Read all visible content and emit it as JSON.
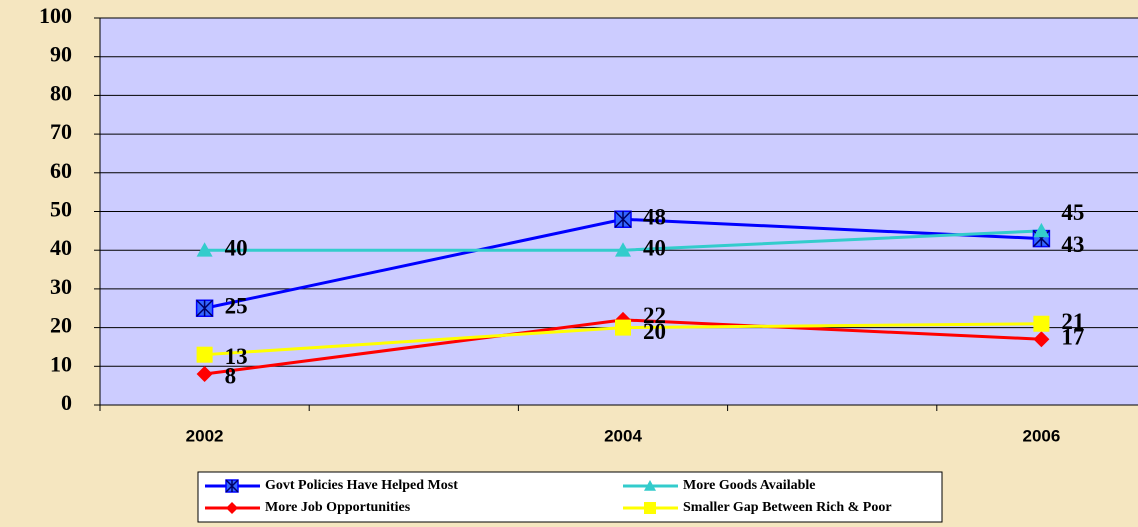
{
  "chart_data": {
    "type": "line",
    "x": [
      2002,
      2004,
      2006
    ],
    "xlim": [
      2001.5,
      2006.5
    ],
    "xticks": [
      2002,
      2004,
      2006
    ],
    "ylim": [
      0,
      100
    ],
    "yticks": [
      0,
      10,
      20,
      30,
      40,
      50,
      60,
      70,
      80,
      90,
      100
    ],
    "grid": true,
    "legend": "bottom",
    "series": [
      {
        "name": "Govt Policies Have Helped Most",
        "color": "#0000ff",
        "marker": "square-star",
        "values": [
          25,
          48,
          43
        ]
      },
      {
        "name": "More Goods Available",
        "color": "#33cccc",
        "marker": "triangle",
        "values": [
          40,
          40,
          45
        ]
      },
      {
        "name": "More Job Opportunities",
        "color": "#ff0000",
        "marker": "diamond",
        "values": [
          8,
          22,
          17
        ]
      },
      {
        "name": "Smaller Gap Between Rich & Poor",
        "color": "#ffff00",
        "marker": "square",
        "values": [
          13,
          20,
          21
        ]
      }
    ]
  }
}
